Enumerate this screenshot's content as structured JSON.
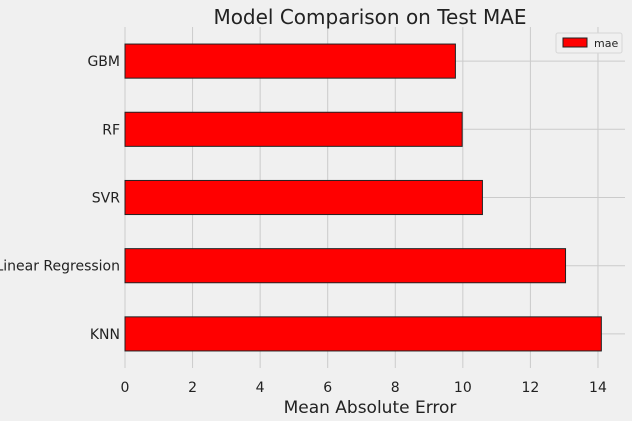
{
  "chart_data": {
    "type": "bar",
    "orientation": "horizontal",
    "title": "Model Comparison on Test MAE",
    "xlabel": "Mean Absolute Error",
    "ylabel": "",
    "categories": [
      "GBM",
      "RF",
      "SVR",
      "Linear Regression",
      "KNN"
    ],
    "series": [
      {
        "name": "mae",
        "values": [
          9.78,
          9.98,
          10.58,
          13.04,
          14.1
        ],
        "color": "#ff0000"
      }
    ],
    "xlim": [
      0,
      14.8
    ],
    "xticks": [
      0,
      2,
      4,
      6,
      8,
      10,
      12,
      14
    ],
    "grid": true,
    "legend": "top-right",
    "colors": {
      "background": "#f0f0f0",
      "grid": "#cbcbcb",
      "bar": "#ff0000",
      "bar_edge": "#222222",
      "text": "#222222"
    }
  }
}
